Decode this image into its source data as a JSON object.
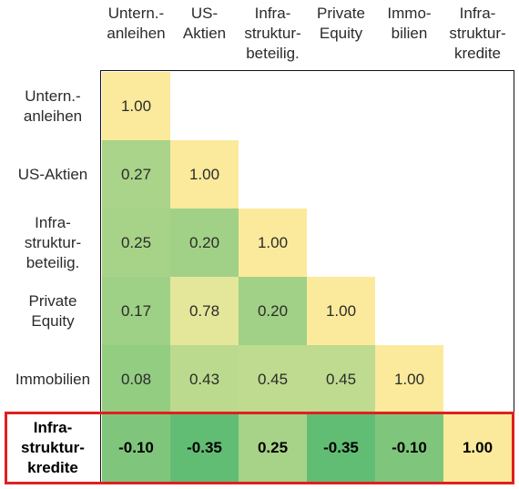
{
  "chart_data": {
    "type": "heatmap",
    "columns": [
      "Untern.-\nanleihen",
      "US-\nAktien",
      "Infra-\nstruktur-\nbeteilig.",
      "Private\nEquity",
      "Immo-\nbilien",
      "Infra-\nstruktur-\nkredite"
    ],
    "rows": [
      "Untern.-\nanleihen",
      "US-Aktien",
      "Infra-\nstruktur-\nbeteilig.",
      "Private\nEquity",
      "Immobilien",
      "Infra-\nstruktur-\nkredite"
    ],
    "values": [
      [
        "1.00"
      ],
      [
        "0.27",
        "1.00"
      ],
      [
        "0.25",
        "0.20",
        "1.00"
      ],
      [
        "0.17",
        "0.78",
        "0.20",
        "1.00"
      ],
      [
        "0.08",
        "0.43",
        "0.45",
        "0.45",
        "1.00"
      ],
      [
        "-0.10",
        "-0.35",
        "0.25",
        "-0.35",
        "-0.10",
        "1.00"
      ]
    ],
    "highlighted_row": 5,
    "colors": {
      "diagonal": "#fbea9c",
      "low": "#62bd74",
      "high": "#e4e79a",
      "frame": "#111111",
      "highlight": "#e02020"
    }
  }
}
